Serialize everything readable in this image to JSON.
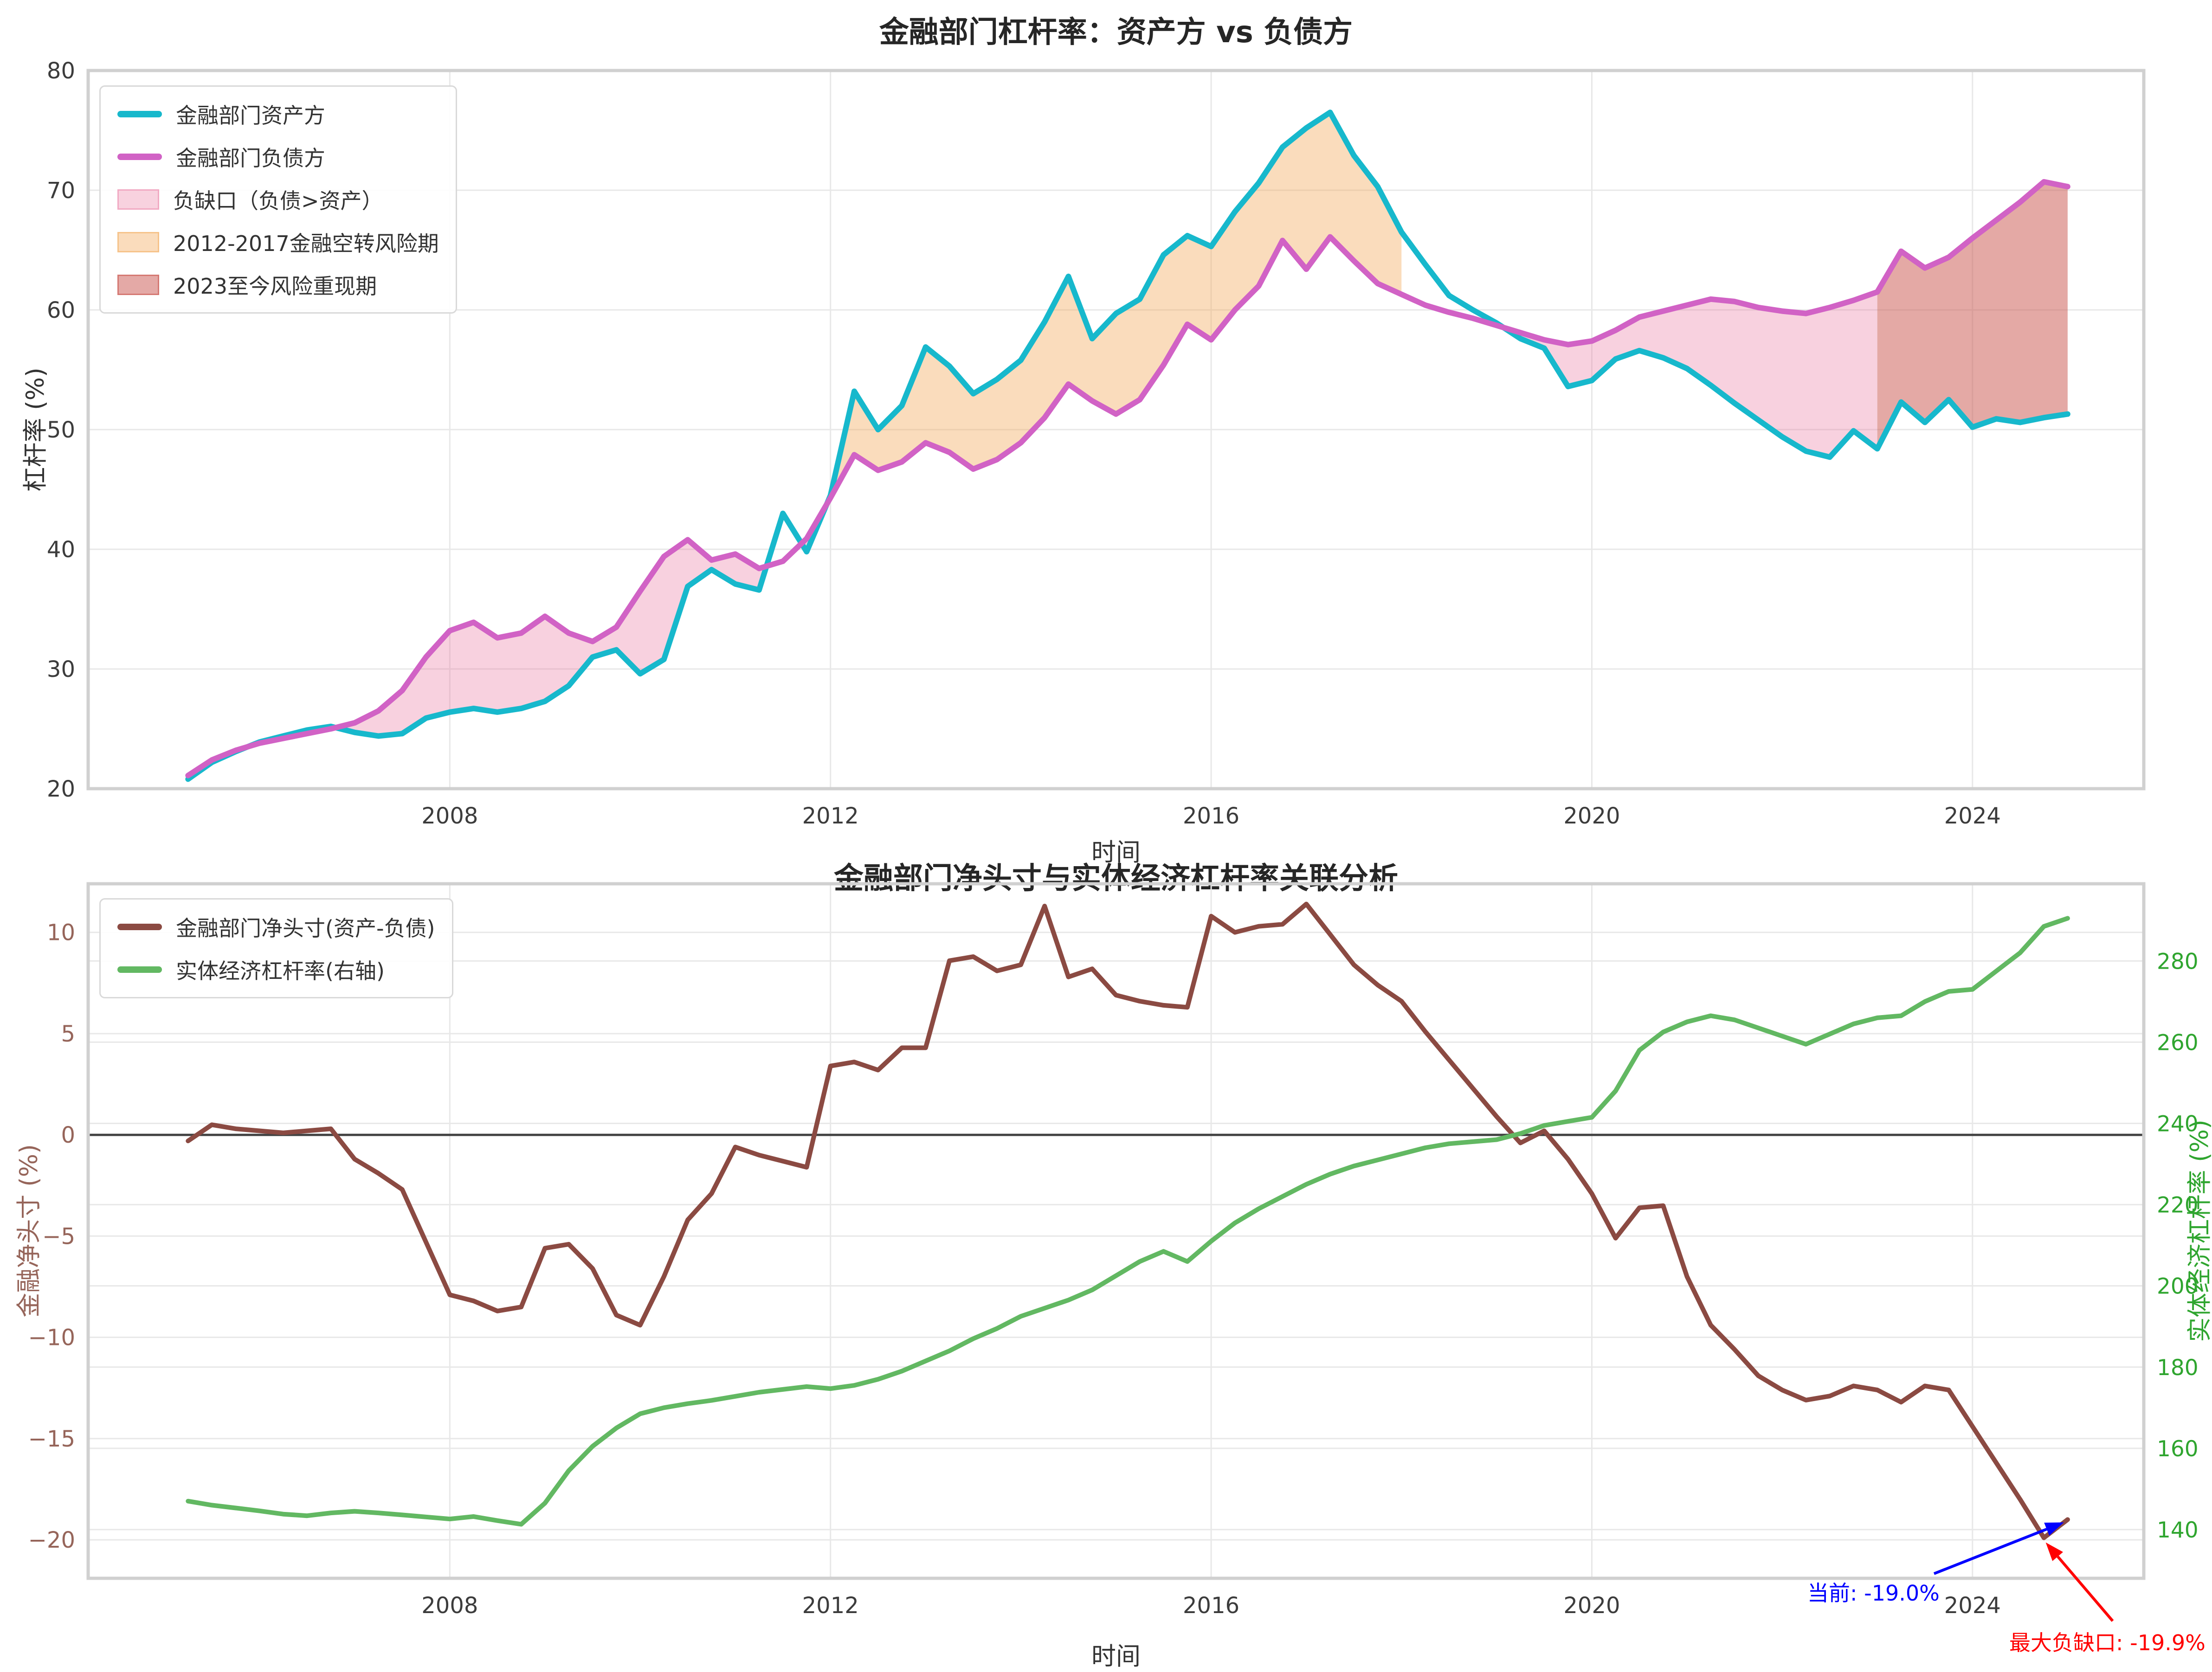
{
  "chart_data": [
    {
      "type": "line",
      "title": "金融部门杠杆率：资产方 vs 负债方",
      "xlabel": "时间",
      "ylabel": "杠杆率 (%)",
      "x_ticks": [
        2008,
        2012,
        2016,
        2020,
        2024
      ],
      "y_ticks": [
        20,
        30,
        40,
        50,
        60,
        70,
        80
      ],
      "ylim": [
        20,
        80
      ],
      "grid": true,
      "legend_position": "upper-left",
      "x": [
        2005.25,
        2005.5,
        2005.75,
        2006.0,
        2006.25,
        2006.5,
        2006.75,
        2007.0,
        2007.25,
        2007.5,
        2007.75,
        2008.0,
        2008.25,
        2008.5,
        2008.75,
        2009.0,
        2009.25,
        2009.5,
        2009.75,
        2010.0,
        2010.25,
        2010.5,
        2010.75,
        2011.0,
        2011.25,
        2011.5,
        2011.75,
        2012.0,
        2012.25,
        2012.5,
        2012.75,
        2013.0,
        2013.25,
        2013.5,
        2013.75,
        2014.0,
        2014.25,
        2014.5,
        2014.75,
        2015.0,
        2015.25,
        2015.5,
        2015.75,
        2016.0,
        2016.25,
        2016.5,
        2016.75,
        2017.0,
        2017.25,
        2017.5,
        2017.75,
        2018.0,
        2018.25,
        2018.5,
        2018.75,
        2019.0,
        2019.25,
        2019.5,
        2019.75,
        2020.0,
        2020.25,
        2020.5,
        2020.75,
        2021.0,
        2021.25,
        2021.5,
        2021.75,
        2022.0,
        2022.25,
        2022.5,
        2022.75,
        2023.0,
        2023.25,
        2023.5,
        2023.75,
        2024.0,
        2024.25,
        2024.5,
        2024.75,
        2025.0
      ],
      "series": [
        {
          "name": "金融部门资产方",
          "color": "#17b8cc",
          "values": [
            20.8,
            22.2,
            23.1,
            23.9,
            24.4,
            24.9,
            25.2,
            24.7,
            24.4,
            24.6,
            25.9,
            26.4,
            26.7,
            26.4,
            26.7,
            27.3,
            28.6,
            31.0,
            31.6,
            29.6,
            30.8,
            36.9,
            38.3,
            37.1,
            36.6,
            43.0,
            39.8,
            44.5,
            53.2,
            50.0,
            52.0,
            56.9,
            55.3,
            53.0,
            54.2,
            55.8,
            59.0,
            62.8,
            57.6,
            59.7,
            60.9,
            64.6,
            66.2,
            65.3,
            68.2,
            70.6,
            73.6,
            75.2,
            76.5,
            72.9,
            70.3,
            66.5,
            63.8,
            61.2,
            60.0,
            58.9,
            57.6,
            56.8,
            53.6,
            54.1,
            55.9,
            56.6,
            56.0,
            55.1,
            53.7,
            52.2,
            50.8,
            49.4,
            48.2,
            47.7,
            49.9,
            48.4,
            52.3,
            50.6,
            52.5,
            50.2,
            50.9,
            50.6,
            51.0,
            51.3
          ]
        },
        {
          "name": "金融部门负债方",
          "color": "#d162c5",
          "values": [
            21.1,
            22.4,
            23.2,
            23.8,
            24.2,
            24.6,
            25.0,
            25.5,
            26.5,
            28.2,
            31.0,
            33.2,
            33.9,
            32.6,
            33.0,
            34.4,
            33.0,
            32.3,
            33.5,
            36.5,
            39.4,
            40.8,
            39.1,
            39.6,
            38.4,
            39.0,
            40.9,
            44.3,
            47.9,
            46.6,
            47.3,
            48.9,
            48.1,
            46.7,
            47.5,
            48.9,
            51.0,
            53.8,
            52.4,
            51.3,
            52.5,
            55.4,
            58.8,
            57.5,
            60.0,
            62.0,
            65.8,
            63.4,
            66.1,
            64.1,
            62.2,
            61.3,
            60.4,
            59.8,
            59.3,
            58.7,
            58.1,
            57.5,
            57.1,
            57.4,
            58.3,
            59.4,
            59.9,
            60.4,
            60.9,
            60.7,
            60.2,
            59.9,
            59.7,
            60.2,
            60.8,
            61.5,
            64.9,
            63.5,
            64.4,
            66.0,
            67.5,
            69.0,
            70.7,
            70.3
          ]
        }
      ],
      "fills": [
        {
          "label": "负缺口（负债>资产）",
          "upper": 1,
          "lower": 0,
          "color": "#e8719b",
          "opacity": 0.32,
          "x_range": [
            2004.2,
            2023.0
          ]
        },
        {
          "label": "2012-2017金融空转风险期",
          "upper": 0,
          "lower": 1,
          "color": "#f2a44e",
          "opacity": 0.38,
          "x_range": [
            2012.0,
            2018.0
          ]
        },
        {
          "label": "2023至今风险重现期",
          "upper": 1,
          "lower": 0,
          "color": "#c9534c",
          "opacity": 0.5,
          "x_range": [
            2023.0,
            2025.8
          ]
        }
      ]
    },
    {
      "type": "line",
      "title": "金融部门净头寸与实体经济杠杆率关联分析",
      "xlabel": "时间",
      "ylabel_left": "金融净头寸 (%)",
      "ylabel_right": "实体经济杠杆率 (%)",
      "x_ticks": [
        2008,
        2012,
        2016,
        2020,
        2024
      ],
      "left": {
        "ticks": [
          10,
          5,
          0,
          -5,
          -10,
          -15,
          -20
        ],
        "lim": [
          -21.9,
          12.4
        ],
        "color": "#96655a"
      },
      "right": {
        "ticks": [
          280,
          260,
          240,
          220,
          200,
          180,
          160,
          140
        ],
        "lim": [
          128,
          299
        ],
        "color": "#2fa52f"
      },
      "zero_line": true,
      "grid": true,
      "legend_position": "upper-left",
      "x": [
        2005.25,
        2005.5,
        2005.75,
        2006.0,
        2006.25,
        2006.5,
        2006.75,
        2007.0,
        2007.25,
        2007.5,
        2007.75,
        2008.0,
        2008.25,
        2008.5,
        2008.75,
        2009.0,
        2009.25,
        2009.5,
        2009.75,
        2010.0,
        2010.25,
        2010.5,
        2010.75,
        2011.0,
        2011.25,
        2011.5,
        2011.75,
        2012.0,
        2012.25,
        2012.5,
        2012.75,
        2013.0,
        2013.25,
        2013.5,
        2013.75,
        2014.0,
        2014.25,
        2014.5,
        2014.75,
        2015.0,
        2015.25,
        2015.5,
        2015.75,
        2016.0,
        2016.25,
        2016.5,
        2016.75,
        2017.0,
        2017.25,
        2017.5,
        2017.75,
        2018.0,
        2018.25,
        2018.5,
        2018.75,
        2019.0,
        2019.25,
        2019.5,
        2019.75,
        2020.0,
        2020.25,
        2020.5,
        2020.75,
        2021.0,
        2021.25,
        2021.5,
        2021.75,
        2022.0,
        2022.25,
        2022.5,
        2022.75,
        2023.0,
        2023.25,
        2023.5,
        2023.75,
        2024.0,
        2024.25,
        2024.5,
        2024.75,
        2025.0
      ],
      "series": [
        {
          "name": "金融部门净头寸(资产-负债)",
          "color": "#8b4a42",
          "axis": "left",
          "values": [
            -0.3,
            0.5,
            0.3,
            0.2,
            0.1,
            0.2,
            0.3,
            -1.2,
            -1.9,
            -2.7,
            -5.3,
            -7.9,
            -8.2,
            -8.7,
            -8.5,
            -5.6,
            -5.4,
            -6.6,
            -8.9,
            -9.4,
            -7.0,
            -4.2,
            -2.9,
            -0.6,
            -1.0,
            -1.3,
            -1.6,
            3.4,
            3.6,
            3.2,
            4.3,
            4.3,
            8.6,
            8.8,
            8.1,
            8.4,
            11.3,
            7.8,
            8.2,
            6.9,
            6.6,
            6.4,
            6.3,
            10.8,
            10.0,
            10.3,
            10.4,
            11.4,
            9.9,
            8.4,
            7.4,
            6.6,
            5.1,
            3.7,
            2.3,
            0.9,
            -0.4,
            0.2,
            -1.2,
            -2.9,
            -5.1,
            -3.6,
            -3.5,
            -7.0,
            -9.4,
            -10.6,
            -11.9,
            -12.6,
            -13.1,
            -12.9,
            -12.4,
            -12.6,
            -13.2,
            -12.4,
            -12.6,
            -14.4,
            -16.2,
            -18.0,
            -19.9,
            -19.0
          ]
        },
        {
          "name": "实体经济杠杆率(右轴)",
          "color": "#62b862",
          "axis": "right",
          "values": [
            147.0,
            146.0,
            145.3,
            144.6,
            143.8,
            143.4,
            144.1,
            144.5,
            144.1,
            143.6,
            143.1,
            142.6,
            143.2,
            142.2,
            141.3,
            146.5,
            154.5,
            160.5,
            165.0,
            168.5,
            170.0,
            171.0,
            171.8,
            172.8,
            173.8,
            174.5,
            175.2,
            174.7,
            175.5,
            177.0,
            179.0,
            181.5,
            184.0,
            187.0,
            189.5,
            192.5,
            194.5,
            196.5,
            199.0,
            202.5,
            206.0,
            208.5,
            206.0,
            211.0,
            215.5,
            219.0,
            222.0,
            225.0,
            227.5,
            229.5,
            231.0,
            232.5,
            234.0,
            235.0,
            235.5,
            236.0,
            237.5,
            239.5,
            240.5,
            241.5,
            248.0,
            258.0,
            262.5,
            265.0,
            266.5,
            265.5,
            263.5,
            261.5,
            259.5,
            262.0,
            264.5,
            266.0,
            266.5,
            270.0,
            272.5,
            273.0,
            277.5,
            282.0,
            288.5,
            290.5
          ]
        }
      ],
      "annotations": [
        {
          "text": "当前: -19.0%",
          "color": "#0000ff",
          "target_x": 2025.0,
          "target_y": -19.0
        },
        {
          "text": "最大负缺口: -19.9%",
          "color": "#ff0000",
          "target_x": 2024.75,
          "target_y": -19.9
        }
      ]
    }
  ]
}
